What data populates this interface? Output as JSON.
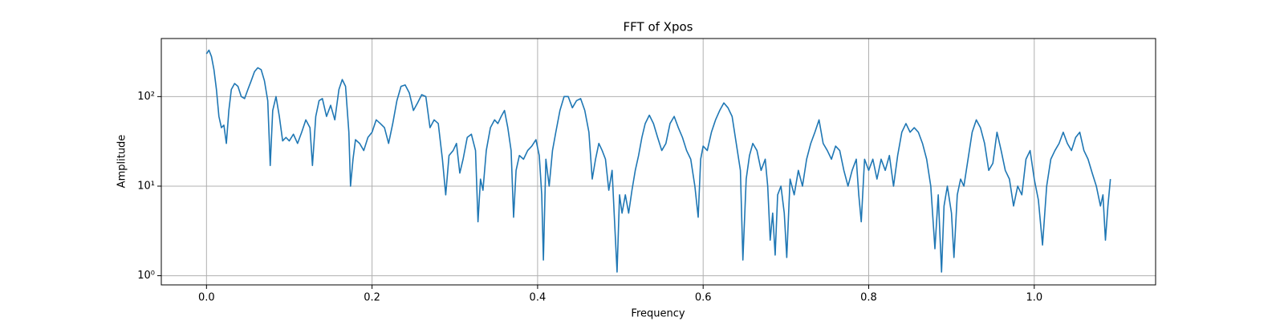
{
  "chart_data": {
    "type": "line",
    "title": "FFT of Xpos",
    "xlabel": "Frequency",
    "ylabel": "Amplitude",
    "yscale": "log",
    "grid": true,
    "xlim": [
      -0.0546,
      1.1466
    ],
    "xticks": [
      {
        "value": 0,
        "label": "0.0"
      },
      0.2,
      0.4,
      0.6,
      0.8,
      {
        "value": 1,
        "label": "1.0"
      }
    ],
    "ylim": [
      0.79,
      445
    ],
    "yticks": [
      {
        "value": 1,
        "label": "10⁰"
      },
      {
        "value": 10,
        "label": "10¹"
      },
      {
        "value": 100,
        "label": "10²"
      }
    ],
    "x": [
      0,
      0.003,
      0.006,
      0.009,
      0.012,
      0.015,
      0.018,
      0.021,
      0.024,
      0.027,
      0.03,
      0.034,
      0.038,
      0.042,
      0.046,
      0.05,
      0.054,
      0.058,
      0.062,
      0.066,
      0.07,
      0.074,
      0.077,
      0.08,
      0.084,
      0.088,
      0.092,
      0.096,
      0.1,
      0.105,
      0.11,
      0.115,
      0.12,
      0.125,
      0.128,
      0.132,
      0.136,
      0.14,
      0.145,
      0.15,
      0.155,
      0.16,
      0.164,
      0.168,
      0.172,
      0.174,
      0.177,
      0.18,
      0.185,
      0.19,
      0.195,
      0.2,
      0.205,
      0.21,
      0.215,
      0.22,
      0.225,
      0.23,
      0.235,
      0.24,
      0.245,
      0.25,
      0.255,
      0.26,
      0.265,
      0.27,
      0.275,
      0.28,
      0.285,
      0.289,
      0.293,
      0.298,
      0.302,
      0.306,
      0.31,
      0.315,
      0.32,
      0.325,
      0.328,
      0.331,
      0.334,
      0.338,
      0.343,
      0.348,
      0.352,
      0.356,
      0.36,
      0.364,
      0.368,
      0.371,
      0.374,
      0.378,
      0.383,
      0.388,
      0.393,
      0.398,
      0.402,
      0.405,
      0.407,
      0.41,
      0.414,
      0.418,
      0.422,
      0.427,
      0.432,
      0.437,
      0.442,
      0.447,
      0.452,
      0.457,
      0.462,
      0.466,
      0.47,
      0.474,
      0.478,
      0.482,
      0.486,
      0.49,
      0.493,
      0.496,
      0.499,
      0.502,
      0.506,
      0.51,
      0.514,
      0.518,
      0.522,
      0.526,
      0.53,
      0.535,
      0.54,
      0.545,
      0.55,
      0.555,
      0.56,
      0.565,
      0.57,
      0.575,
      0.58,
      0.585,
      0.59,
      0.594,
      0.597,
      0.6,
      0.605,
      0.61,
      0.615,
      0.62,
      0.625,
      0.63,
      0.635,
      0.64,
      0.645,
      0.648,
      0.652,
      0.656,
      0.66,
      0.665,
      0.67,
      0.675,
      0.678,
      0.681,
      0.684,
      0.687,
      0.69,
      0.694,
      0.698,
      0.701,
      0.705,
      0.71,
      0.715,
      0.72,
      0.725,
      0.73,
      0.735,
      0.74,
      0.745,
      0.75,
      0.755,
      0.76,
      0.765,
      0.77,
      0.775,
      0.78,
      0.785,
      0.788,
      0.791,
      0.795,
      0.8,
      0.805,
      0.81,
      0.815,
      0.82,
      0.825,
      0.83,
      0.835,
      0.84,
      0.845,
      0.85,
      0.855,
      0.86,
      0.865,
      0.87,
      0.875,
      0.88,
      0.884,
      0.888,
      0.891,
      0.895,
      0.9,
      0.903,
      0.907,
      0.911,
      0.915,
      0.92,
      0.925,
      0.93,
      0.935,
      0.94,
      0.945,
      0.95,
      0.955,
      0.96,
      0.965,
      0.97,
      0.975,
      0.98,
      0.985,
      0.99,
      0.995,
      1,
      1.005,
      1.01,
      1.015,
      1.02,
      1.025,
      1.03,
      1.035,
      1.04,
      1.045,
      1.05,
      1.055,
      1.06,
      1.065,
      1.07,
      1.075,
      1.08,
      1.083,
      1.086,
      1.089,
      1.092
    ],
    "series": [
      {
        "color": "#1f77b4",
        "values": [
          300,
          330,
          280,
          200,
          120,
          60,
          45,
          48,
          30,
          70,
          120,
          140,
          130,
          100,
          95,
          120,
          150,
          190,
          210,
          200,
          150,
          90,
          17,
          70,
          100,
          60,
          32,
          35,
          32,
          38,
          30,
          40,
          55,
          45,
          17,
          60,
          90,
          95,
          60,
          80,
          55,
          120,
          155,
          130,
          40,
          10,
          20,
          33,
          30,
          25,
          35,
          40,
          55,
          50,
          45,
          30,
          50,
          90,
          130,
          135,
          110,
          70,
          85,
          105,
          100,
          45,
          55,
          50,
          20,
          8,
          22,
          25,
          30,
          14,
          20,
          35,
          38,
          25,
          4,
          12,
          9,
          25,
          45,
          55,
          50,
          60,
          70,
          45,
          25,
          4.5,
          15,
          22,
          20,
          25,
          28,
          33,
          22,
          8,
          1.5,
          20,
          10,
          25,
          40,
          70,
          100,
          100,
          75,
          90,
          95,
          70,
          40,
          12,
          20,
          30,
          25,
          20,
          9,
          15,
          4,
          1.1,
          8,
          5,
          8,
          5,
          9,
          15,
          22,
          35,
          50,
          62,
          50,
          35,
          25,
          30,
          50,
          60,
          45,
          35,
          25,
          20,
          10,
          4.5,
          20,
          28,
          25,
          40,
          55,
          70,
          85,
          75,
          60,
          30,
          15,
          1.5,
          12,
          22,
          30,
          25,
          15,
          20,
          10,
          2.5,
          5,
          1.7,
          8,
          10,
          5,
          1.6,
          12,
          8,
          15,
          10,
          20,
          30,
          40,
          55,
          30,
          25,
          20,
          28,
          25,
          15,
          10,
          15,
          20,
          8,
          4,
          20,
          15,
          20,
          12,
          20,
          15,
          22,
          10,
          22,
          40,
          50,
          40,
          45,
          40,
          30,
          20,
          10,
          2,
          8,
          1.1,
          6,
          10,
          5,
          1.6,
          8,
          12,
          10,
          20,
          40,
          55,
          45,
          30,
          15,
          18,
          40,
          25,
          15,
          12,
          6,
          10,
          8,
          20,
          25,
          12,
          7,
          2.2,
          10,
          20,
          25,
          30,
          40,
          30,
          25,
          35,
          40,
          25,
          20,
          14,
          10,
          6,
          8,
          2.5,
          6,
          12
        ]
      }
    ]
  }
}
